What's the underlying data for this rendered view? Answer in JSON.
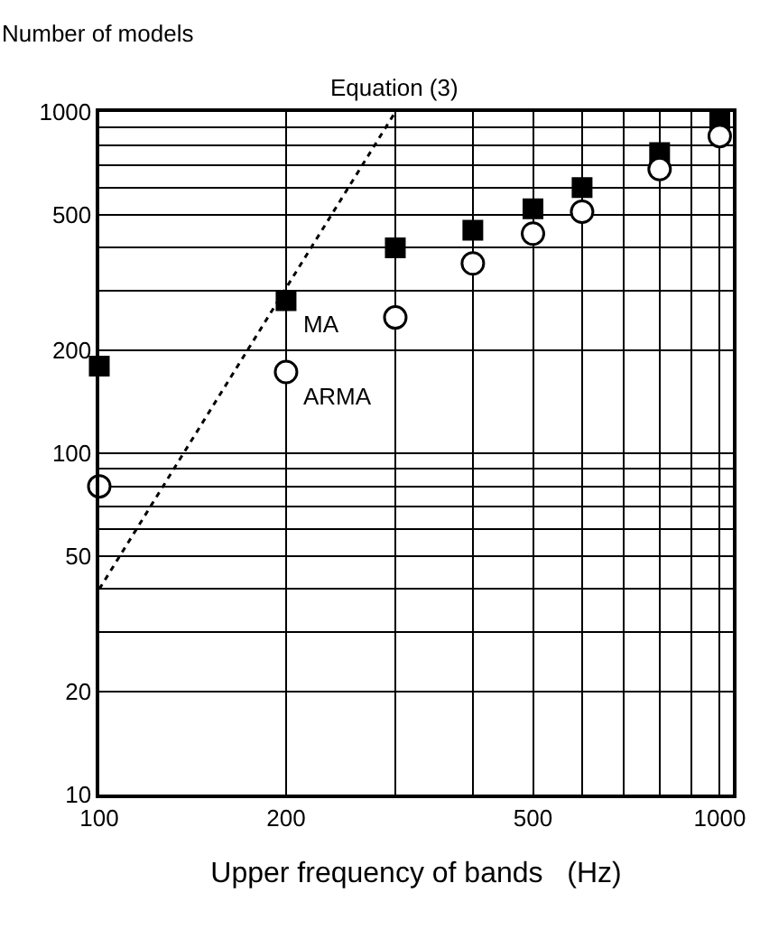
{
  "chart_data": {
    "type": "scatter",
    "ylabel": "Number of models",
    "xlabel": "Upper frequency of bands   (Hz)",
    "log": "xy",
    "grid": true,
    "xlim": [
      100,
      1050
    ],
    "ylim": [
      10,
      1000
    ],
    "xticks": [
      100,
      200,
      {
        "value": 300,
        "label": null
      },
      {
        "value": 400,
        "label": null
      },
      500,
      {
        "value": 600,
        "label": null
      },
      {
        "value": 700,
        "label": null
      },
      {
        "value": 800,
        "label": null
      },
      {
        "value": 900,
        "label": null
      },
      1000
    ],
    "yticks": [
      10,
      20,
      {
        "value": 30,
        "label": null
      },
      {
        "value": 40,
        "label": null
      },
      50,
      {
        "value": 60,
        "label": null
      },
      {
        "value": 70,
        "label": null
      },
      {
        "value": 80,
        "label": null
      },
      {
        "value": 90,
        "label": null
      },
      100,
      200,
      {
        "value": 300,
        "label": null
      },
      {
        "value": 400,
        "label": null
      },
      500,
      {
        "value": 600,
        "label": null
      },
      {
        "value": 700,
        "label": null
      },
      {
        "value": 800,
        "label": null
      },
      {
        "value": 900,
        "label": null
      },
      1000
    ],
    "series": [
      {
        "name": "MA",
        "marker": "square",
        "color": "#000000",
        "x": [
          100,
          200,
          300,
          400,
          500,
          600,
          800,
          1000
        ],
        "values": [
          180,
          280,
          400,
          450,
          520,
          600,
          760,
          950
        ]
      },
      {
        "name": "ARMA",
        "marker": "circle",
        "color": "#ffffff",
        "x": [
          100,
          200,
          300,
          400,
          500,
          600,
          800,
          1000
        ],
        "values": [
          80,
          173,
          250,
          360,
          440,
          510,
          680,
          850
        ]
      },
      {
        "type": "line",
        "marker": "none",
        "line_style": "dotted",
        "color": "#000000",
        "x": [
          100,
          300
        ],
        "values": [
          40,
          1000
        ]
      }
    ],
    "annotations": [
      {
        "text": "Equation (3)",
        "x": 300,
        "y": 1000
      }
    ]
  }
}
